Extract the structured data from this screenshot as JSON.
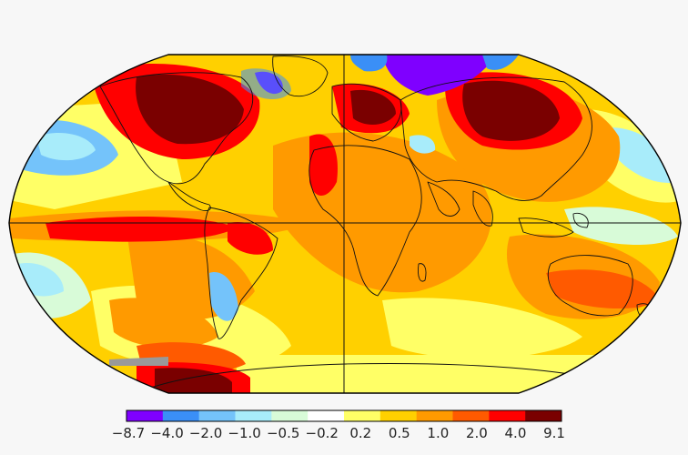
{
  "map": {
    "projection": "robinson",
    "graticule": "equator-and-prime-meridian"
  },
  "colorbar": {
    "colors": [
      "#7f00ff",
      "#3a8ff7",
      "#74c3fa",
      "#a8ecfa",
      "#d8fbd8",
      "#ffffff",
      "#ffff66",
      "#ffd000",
      "#ff9a00",
      "#ff5a00",
      "#ff0000",
      "#7a0000"
    ],
    "tick_labels": [
      "−8.7",
      "−4.0",
      "−2.0",
      "−1.0",
      "−0.5",
      "−0.2",
      "0.2",
      "0.5",
      "1.0",
      "2.0",
      "4.0",
      "9.1"
    ]
  }
}
